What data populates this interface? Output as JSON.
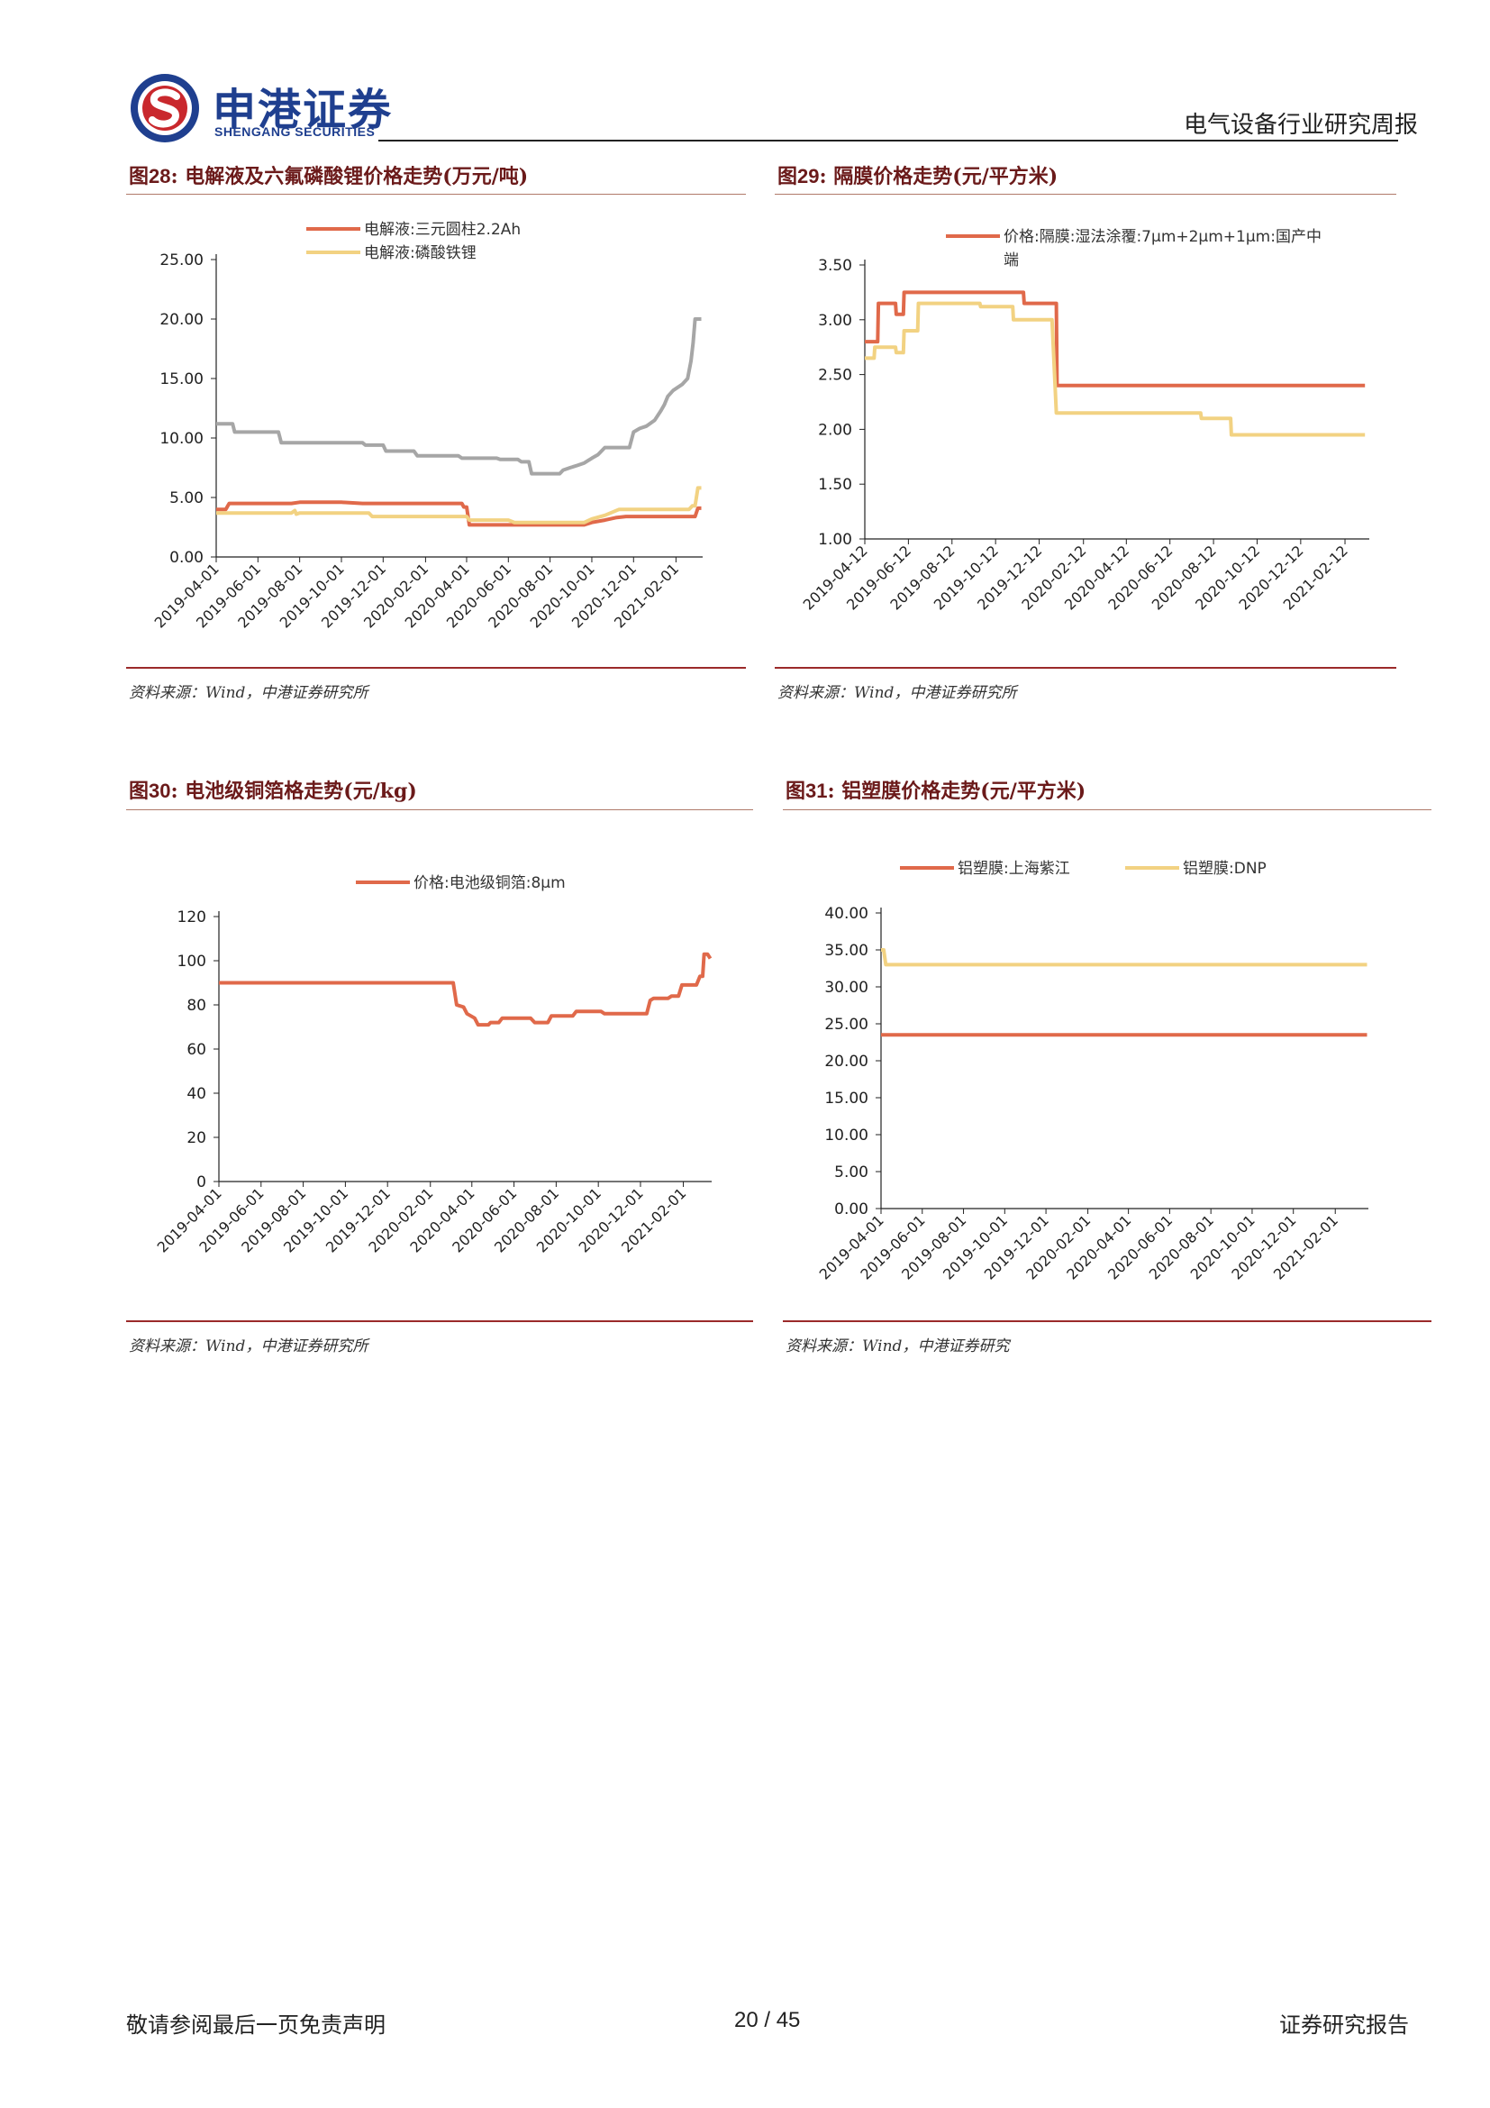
{
  "header": {
    "brand_cn": "申港证券",
    "brand_en": "SHENGANG SECURITIES",
    "report_type": "电气设备行业研究周报",
    "colors": {
      "brand_blue": "#1f3f8f",
      "brand_red": "#c9282d"
    }
  },
  "figures": [
    {
      "title_prefix": "图",
      "number": "28",
      "title_text": "电解液及六氟磷酸锂价格走势(万元/吨)",
      "source": "资料来源：Wind，中港证券研究所"
    },
    {
      "title_prefix": "图",
      "number": "29",
      "title_text": "隔膜价格走势(元/平方米)",
      "source": "资料来源：Wind，中港证券研究所"
    },
    {
      "title_prefix": "图",
      "number": "30",
      "title_text": "电池级铜箔格走势(元/kg)",
      "source": "资料来源：Wind，中港证券研究所"
    },
    {
      "title_prefix": "图",
      "number": "31",
      "title_text": "铝塑膜价格走势(元/平方米)",
      "source": "资料来源：Wind，中港证券研究"
    }
  ],
  "chart_data": [
    {
      "type": "line",
      "x_tick_labels": [
        "2019-04-01",
        "2019-06-01",
        "2019-08-01",
        "2019-10-01",
        "2019-12-01",
        "2020-02-01",
        "2020-04-01",
        "2020-06-01",
        "2020-08-01",
        "2020-10-01",
        "2020-12-01",
        "2021-02-01"
      ],
      "y_tick_labels": [
        "0.00",
        "5.00",
        "10.00",
        "15.00",
        "20.00",
        "25.00"
      ],
      "ylim": [
        0,
        25
      ],
      "legend_position": "top",
      "series": [
        {
          "name": "电解液:三元圆柱2.2Ah",
          "color": "#e0694a",
          "show_in_legend": true,
          "points": [
            [
              "2019-04-01",
              4.0
            ],
            [
              "2019-04-15",
              4.0
            ],
            [
              "2019-04-20",
              4.5
            ],
            [
              "2019-07-20",
              4.5
            ],
            [
              "2019-08-01",
              4.6
            ],
            [
              "2019-10-01",
              4.6
            ],
            [
              "2019-11-01",
              4.5
            ],
            [
              "2020-03-25",
              4.5
            ],
            [
              "2020-03-28",
              4.2
            ],
            [
              "2020-04-01",
              4.2
            ],
            [
              "2020-04-05",
              2.7
            ],
            [
              "2020-09-20",
              2.7
            ],
            [
              "2020-10-01",
              2.9
            ],
            [
              "2020-10-20",
              3.1
            ],
            [
              "2020-11-05",
              3.3
            ],
            [
              "2020-11-20",
              3.4
            ],
            [
              "2021-03-01",
              3.4
            ],
            [
              "2021-03-05",
              4.1
            ],
            [
              "2021-03-10",
              4.1
            ]
          ]
        },
        {
          "name": "电解液:磷酸铁锂",
          "color": "#f2d282",
          "show_in_legend": true,
          "points": [
            [
              "2019-04-01",
              3.7
            ],
            [
              "2019-07-20",
              3.7
            ],
            [
              "2019-07-25",
              3.9
            ],
            [
              "2019-07-27",
              3.6
            ],
            [
              "2019-08-01",
              3.7
            ],
            [
              "2019-11-10",
              3.7
            ],
            [
              "2019-11-15",
              3.4
            ],
            [
              "2020-04-01",
              3.4
            ],
            [
              "2020-04-05",
              3.1
            ],
            [
              "2020-06-01",
              3.1
            ],
            [
              "2020-06-10",
              2.9
            ],
            [
              "2020-09-20",
              2.9
            ],
            [
              "2020-10-01",
              3.2
            ],
            [
              "2020-10-20",
              3.5
            ],
            [
              "2020-11-10",
              4.0
            ],
            [
              "2021-02-20",
              4.0
            ],
            [
              "2021-02-25",
              4.3
            ],
            [
              "2021-03-01",
              4.3
            ],
            [
              "2021-03-05",
              5.8
            ],
            [
              "2021-03-10",
              5.8
            ]
          ]
        },
        {
          "name": "",
          "color": "#a6a6a6",
          "show_in_legend": false,
          "points": [
            [
              "2019-04-01",
              11.2
            ],
            [
              "2019-04-25",
              11.2
            ],
            [
              "2019-04-28",
              10.5
            ],
            [
              "2019-07-01",
              10.5
            ],
            [
              "2019-07-05",
              9.6
            ],
            [
              "2019-11-01",
              9.6
            ],
            [
              "2019-11-05",
              9.4
            ],
            [
              "2019-12-01",
              9.4
            ],
            [
              "2019-12-05",
              8.9
            ],
            [
              "2020-01-15",
              8.9
            ],
            [
              "2020-01-20",
              8.5
            ],
            [
              "2020-03-20",
              8.5
            ],
            [
              "2020-03-25",
              8.3
            ],
            [
              "2020-05-15",
              8.3
            ],
            [
              "2020-05-20",
              8.2
            ],
            [
              "2020-06-15",
              8.2
            ],
            [
              "2020-06-20",
              8.0
            ],
            [
              "2020-07-01",
              8.0
            ],
            [
              "2020-07-05",
              7.0
            ],
            [
              "2020-08-15",
              7.0
            ],
            [
              "2020-08-20",
              7.3
            ],
            [
              "2020-08-30",
              7.5
            ],
            [
              "2020-09-10",
              7.7
            ],
            [
              "2020-09-20",
              7.9
            ],
            [
              "2020-10-01",
              8.3
            ],
            [
              "2020-10-10",
              8.6
            ],
            [
              "2020-10-20",
              9.2
            ],
            [
              "2020-11-25",
              9.2
            ],
            [
              "2020-12-01",
              10.5
            ],
            [
              "2020-12-10",
              10.8
            ],
            [
              "2020-12-20",
              11.0
            ],
            [
              "2021-01-01",
              11.5
            ],
            [
              "2021-01-10",
              12.3
            ],
            [
              "2021-01-15",
              12.8
            ],
            [
              "2021-01-20",
              13.5
            ],
            [
              "2021-01-28",
              14.0
            ],
            [
              "2021-02-10",
              14.5
            ],
            [
              "2021-02-18",
              15.0
            ],
            [
              "2021-02-23",
              16.5
            ],
            [
              "2021-02-26",
              18.0
            ],
            [
              "2021-03-01",
              20.0
            ],
            [
              "2021-03-10",
              20.0
            ]
          ]
        }
      ]
    },
    {
      "type": "line",
      "x_tick_labels": [
        "2019-04-12",
        "2019-06-12",
        "2019-08-12",
        "2019-10-12",
        "2019-12-12",
        "2020-02-12",
        "2020-04-12",
        "2020-06-12",
        "2020-08-12",
        "2020-10-12",
        "2020-12-12",
        "2021-02-12"
      ],
      "y_tick_labels": [
        "1.00",
        "1.50",
        "2.00",
        "2.50",
        "3.00",
        "3.50"
      ],
      "ylim": [
        1.0,
        3.5
      ],
      "legend_position": "top",
      "series": [
        {
          "name": "价格:隔膜:湿法涂覆:7μm+2μm+1μm:国产中端",
          "color": "#e0694a",
          "show_in_legend": true,
          "points": [
            [
              "2019-04-12",
              2.8
            ],
            [
              "2019-04-30",
              2.8
            ],
            [
              "2019-05-01",
              3.15
            ],
            [
              "2019-05-25",
              3.15
            ],
            [
              "2019-05-26",
              3.05
            ],
            [
              "2019-06-05",
              3.05
            ],
            [
              "2019-06-06",
              3.25
            ],
            [
              "2019-11-20",
              3.25
            ],
            [
              "2019-11-21",
              3.15
            ],
            [
              "2020-01-05",
              3.15
            ],
            [
              "2020-01-06",
              2.4
            ],
            [
              "2021-03-12",
              2.4
            ]
          ]
        },
        {
          "name": "",
          "color": "#f2d282",
          "show_in_legend": false,
          "points": [
            [
              "2019-04-12",
              2.65
            ],
            [
              "2019-04-25",
              2.65
            ],
            [
              "2019-04-26",
              2.75
            ],
            [
              "2019-05-25",
              2.75
            ],
            [
              "2019-05-26",
              2.7
            ],
            [
              "2019-06-05",
              2.7
            ],
            [
              "2019-06-06",
              2.9
            ],
            [
              "2019-06-25",
              2.9
            ],
            [
              "2019-06-26",
              3.15
            ],
            [
              "2019-09-20",
              3.15
            ],
            [
              "2019-09-21",
              3.12
            ],
            [
              "2019-11-05",
              3.12
            ],
            [
              "2019-11-06",
              3.0
            ],
            [
              "2019-12-30",
              3.0
            ],
            [
              "2020-01-05",
              2.15
            ],
            [
              "2020-07-25",
              2.15
            ],
            [
              "2020-07-26",
              2.1
            ],
            [
              "2020-09-05",
              2.1
            ],
            [
              "2020-09-06",
              1.95
            ],
            [
              "2021-03-12",
              1.95
            ]
          ]
        }
      ]
    },
    {
      "type": "line",
      "x_tick_labels": [
        "2019-04-01",
        "2019-06-01",
        "2019-08-01",
        "2019-10-01",
        "2019-12-01",
        "2020-02-01",
        "2020-04-01",
        "2020-06-01",
        "2020-08-01",
        "2020-10-01",
        "2020-12-01",
        "2021-02-01"
      ],
      "y_tick_labels": [
        "0",
        "20",
        "40",
        "60",
        "80",
        "100",
        "120"
      ],
      "ylim": [
        0,
        120
      ],
      "legend_position": "top",
      "series": [
        {
          "name": "价格:电池级铜箔:8μm",
          "color": "#e0694a",
          "show_in_legend": true,
          "points": [
            [
              "2019-04-01",
              90
            ],
            [
              "2020-03-05",
              90
            ],
            [
              "2020-03-10",
              80
            ],
            [
              "2020-03-20",
              79
            ],
            [
              "2020-03-25",
              76
            ],
            [
              "2020-04-05",
              74
            ],
            [
              "2020-04-10",
              71
            ],
            [
              "2020-04-25",
              71
            ],
            [
              "2020-04-28",
              72
            ],
            [
              "2020-05-10",
              72
            ],
            [
              "2020-05-15",
              74
            ],
            [
              "2020-06-25",
              74
            ],
            [
              "2020-07-01",
              72
            ],
            [
              "2020-07-20",
              72
            ],
            [
              "2020-07-25",
              75
            ],
            [
              "2020-08-25",
              75
            ],
            [
              "2020-08-30",
              77
            ],
            [
              "2020-10-05",
              77
            ],
            [
              "2020-10-10",
              76
            ],
            [
              "2020-12-10",
              76
            ],
            [
              "2020-12-15",
              82
            ],
            [
              "2020-12-20",
              83
            ],
            [
              "2021-01-10",
              83
            ],
            [
              "2021-01-15",
              84
            ],
            [
              "2021-01-25",
              84
            ],
            [
              "2021-01-30",
              89
            ],
            [
              "2021-02-20",
              89
            ],
            [
              "2021-02-25",
              93
            ],
            [
              "2021-03-01",
              93
            ],
            [
              "2021-03-03",
              103
            ],
            [
              "2021-03-08",
              103
            ],
            [
              "2021-03-12",
              101
            ]
          ]
        }
      ]
    },
    {
      "type": "line",
      "x_tick_labels": [
        "2019-04-01",
        "2019-06-01",
        "2019-08-01",
        "2019-10-01",
        "2019-12-01",
        "2020-02-01",
        "2020-04-01",
        "2020-06-01",
        "2020-08-01",
        "2020-10-01",
        "2020-12-01",
        "2021-02-01"
      ],
      "y_tick_labels": [
        "0.00",
        "5.00",
        "10.00",
        "15.00",
        "20.00",
        "25.00",
        "30.00",
        "35.00",
        "40.00"
      ],
      "ylim": [
        0,
        40
      ],
      "legend_position": "top",
      "series": [
        {
          "name": "铝塑膜:上海紫江",
          "color": "#e0694a",
          "show_in_legend": true,
          "points": [
            [
              "2019-04-01",
              23.5
            ],
            [
              "2021-03-20",
              23.5
            ]
          ]
        },
        {
          "name": "铝塑膜:DNP",
          "color": "#f2d282",
          "show_in_legend": true,
          "points": [
            [
              "2019-04-01",
              35.0
            ],
            [
              "2019-04-05",
              35.0
            ],
            [
              "2019-04-08",
              33.0
            ],
            [
              "2021-03-20",
              33.0
            ]
          ]
        }
      ]
    }
  ],
  "footer": {
    "disclaimer": "敬请参阅最后一页免责声明",
    "page": "20 / 45",
    "report_label": "证券研究报告"
  }
}
